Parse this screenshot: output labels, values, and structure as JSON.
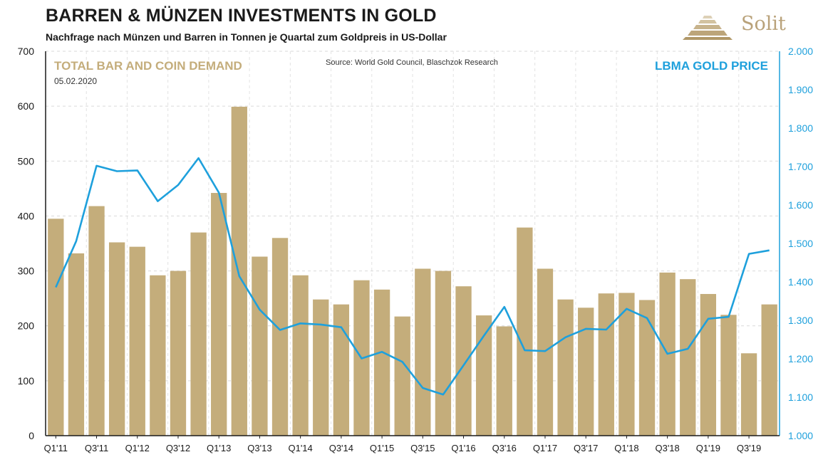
{
  "header": {
    "title": "BARREN & MÜNZEN INVESTMENTS IN GOLD",
    "subtitle": "Nachfrage nach Münzen und Barren in Tonnen je Quartal zum Goldpreis in US-Dollar"
  },
  "logo": {
    "text": "Solit",
    "icon": "pyramid-stack-icon",
    "color": "#b9a27a"
  },
  "chart_data": {
    "type": "bar",
    "categories": [
      "Q1'11",
      "Q2'11",
      "Q3'11",
      "Q4'11",
      "Q1'12",
      "Q2'12",
      "Q3'12",
      "Q4'12",
      "Q1'13",
      "Q2'13",
      "Q3'13",
      "Q4'13",
      "Q1'14",
      "Q2'14",
      "Q3'14",
      "Q4'14",
      "Q1'15",
      "Q2'15",
      "Q3'15",
      "Q4'15",
      "Q1'16",
      "Q2'16",
      "Q3'16",
      "Q4'16",
      "Q1'17",
      "Q2'17",
      "Q3'17",
      "Q4'17",
      "Q1'18",
      "Q2'18",
      "Q3'18",
      "Q4'18",
      "Q1'19",
      "Q2'19",
      "Q3'19",
      "Q4'19"
    ],
    "x_tick_labels": [
      "Q1'11",
      "Q3'11",
      "Q1'12",
      "Q3'12",
      "Q1'13",
      "Q3'13",
      "Q1'14",
      "Q3'14",
      "Q1'15",
      "Q3'15",
      "Q1'16",
      "Q3'16",
      "Q1'17",
      "Q3'17",
      "Q1'18",
      "Q3'18",
      "Q1'19",
      "Q3'19"
    ],
    "series": [
      {
        "name": "TOTAL BAR AND COIN DEMAND",
        "kind": "bar",
        "axis": "left",
        "color": "#c4ad7b",
        "values": [
          395,
          332,
          418,
          352,
          344,
          292,
          300,
          370,
          442,
          599,
          326,
          360,
          292,
          248,
          239,
          283,
          266,
          217,
          304,
          300,
          272,
          219,
          199,
          379,
          304,
          248,
          233,
          259,
          260,
          247,
          297,
          285,
          258,
          220,
          150,
          239
        ]
      },
      {
        "name": "LBMA GOLD PRICE",
        "kind": "line",
        "axis": "right",
        "color": "#1ea0dc",
        "values": [
          1386,
          1506,
          1702,
          1688,
          1690,
          1610,
          1652,
          1722,
          1632,
          1415,
          1328,
          1275,
          1292,
          1289,
          1282,
          1201,
          1218,
          1192,
          1124,
          1107,
          1183,
          1260,
          1335,
          1222,
          1220,
          1256,
          1278,
          1276,
          1330,
          1306,
          1213,
          1226,
          1304,
          1309,
          1473,
          1482
        ]
      }
    ],
    "yaxis_left": {
      "min": 0,
      "max": 700,
      "ticks": [
        "0",
        "100",
        "200",
        "300",
        "400",
        "500",
        "600",
        "700"
      ]
    },
    "yaxis_right": {
      "min": 1000,
      "max": 2000,
      "ticks": [
        "1.000",
        "1.100",
        "1.200",
        "1.300",
        "1.400",
        "1.500",
        "1.600",
        "1.700",
        "1.800",
        "1.900",
        "2.000"
      ],
      "color": "#1ea0dc"
    },
    "grid": true,
    "annotations": {
      "left_label": "TOTAL BAR AND COIN DEMAND",
      "date": "05.02.2020",
      "source": "Source: World Gold Council, Blaschzok Research",
      "right_label": "LBMA GOLD PRICE"
    }
  }
}
